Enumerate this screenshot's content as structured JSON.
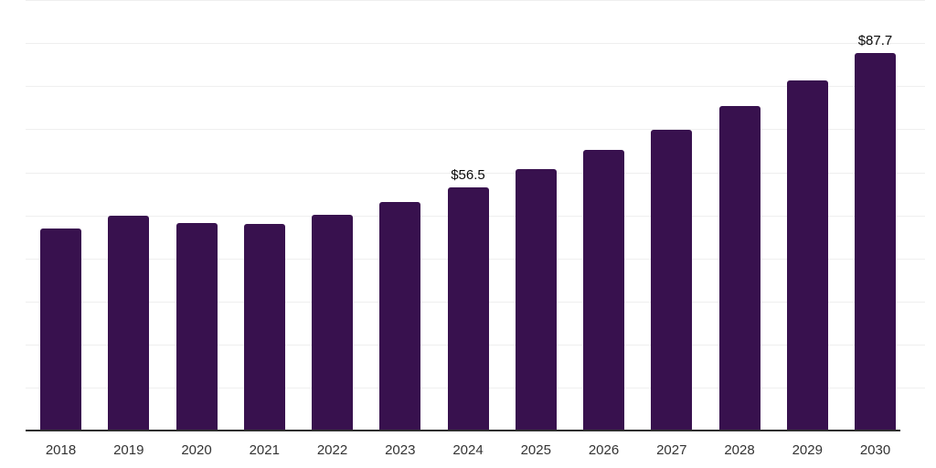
{
  "chart_data": {
    "type": "bar",
    "categories": [
      "2018",
      "2019",
      "2020",
      "2021",
      "2022",
      "2023",
      "2024",
      "2025",
      "2026",
      "2027",
      "2028",
      "2029",
      "2030"
    ],
    "values": [
      47.0,
      50.0,
      48.3,
      48.1,
      50.2,
      53.0,
      56.5,
      60.8,
      65.3,
      69.9,
      75.4,
      81.3,
      87.7
    ],
    "data_labels": {
      "2024": "$56.5",
      "2030": "$87.7"
    },
    "title": "",
    "xlabel": "",
    "ylabel": "",
    "ylim": [
      0,
      100
    ],
    "gridline_step": 10,
    "grid": true,
    "legend": "none",
    "y_tick_labels_visible": false,
    "colors": {
      "bar": "#38114E",
      "gridline": "#efefef",
      "axis_line": "#2e2e2e",
      "tick_label": "#333333",
      "data_label": "#0a0a0a",
      "background": "#ffffff"
    }
  }
}
